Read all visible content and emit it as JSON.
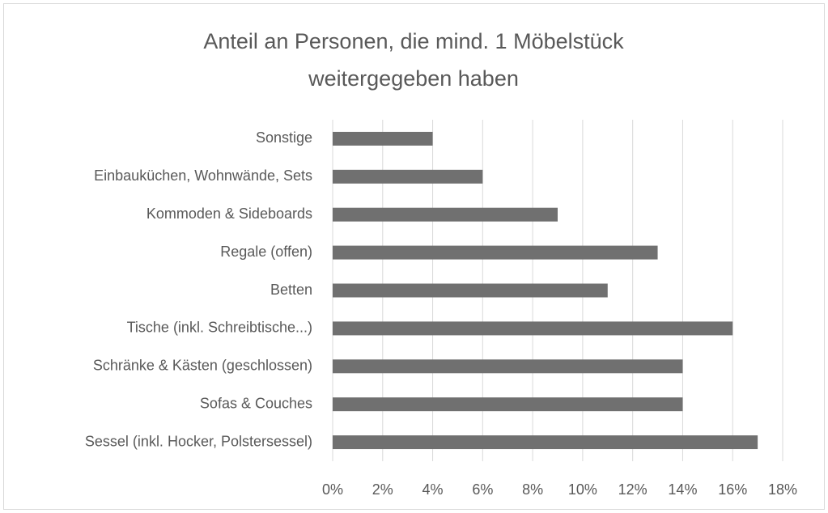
{
  "chart_data": {
    "type": "barh",
    "title": "Anteil an Personen, die mind. 1 Möbelstück weitergegeben haben",
    "categories": [
      "Sonstige",
      "Einbauküchen, Wohnwände, Sets",
      "Kommoden & Sideboards",
      "Regale (offen)",
      "Betten",
      "Tische (inkl. Schreibtische...)",
      "Schränke & Kästen (geschlossen)",
      "Sofas & Couches",
      "Sessel (inkl. Hocker, Polstersessel)"
    ],
    "values": [
      4,
      6,
      9,
      13,
      11,
      16,
      14,
      14,
      17
    ],
    "color": "#707070",
    "xlim": [
      0,
      18
    ],
    "xticks": [
      {
        "value": 0,
        "label": "0%"
      },
      {
        "value": 2,
        "label": "2%"
      },
      {
        "value": 4,
        "label": "4%"
      },
      {
        "value": 6,
        "label": "6%"
      },
      {
        "value": 8,
        "label": "8%"
      },
      {
        "value": 10,
        "label": "10%"
      },
      {
        "value": 12,
        "label": "12%"
      },
      {
        "value": 14,
        "label": "14%"
      },
      {
        "value": 16,
        "label": "16%"
      },
      {
        "value": 18,
        "label": "18%"
      }
    ],
    "grid": true
  }
}
